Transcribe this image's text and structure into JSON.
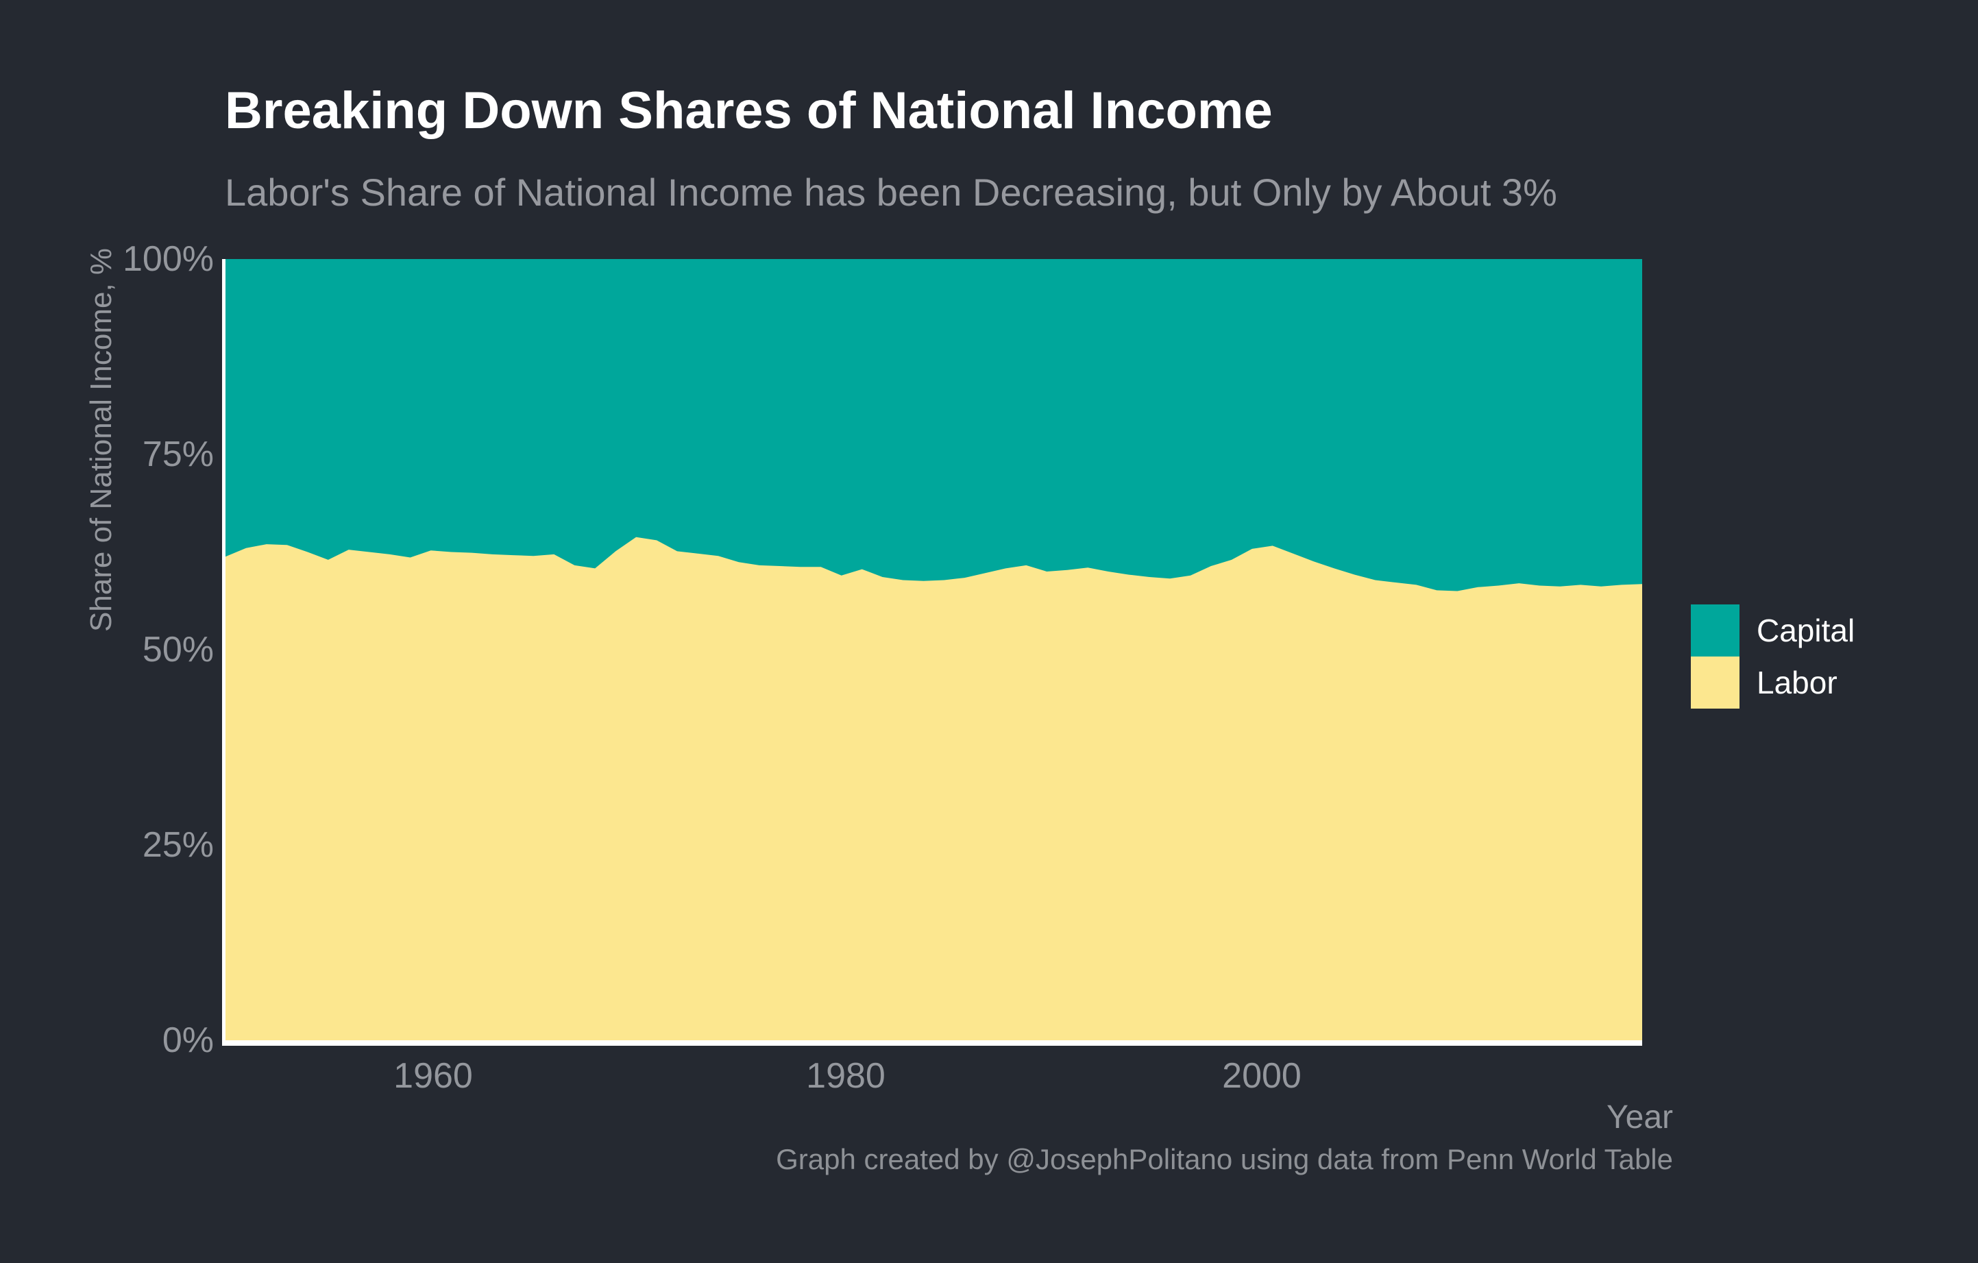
{
  "header": {
    "title": "Breaking Down Shares of National Income",
    "subtitle": "Labor's Share of National Income has been Decreasing, but Only by About 3%"
  },
  "axes": {
    "y_label": "Share of National Income, %",
    "y_ticks": [
      "100%",
      "75%",
      "50%",
      "25%",
      "0%"
    ],
    "x_label": "Year",
    "x_ticks": [
      "1960",
      "1980",
      "2000"
    ]
  },
  "legend": {
    "items": [
      {
        "label": "Capital",
        "color": "#00A79B"
      },
      {
        "label": "Labor",
        "color": "#FCE78F"
      }
    ]
  },
  "caption": "Graph created by @JosephPolitano using data from Penn World Table",
  "colors": {
    "background": "#252931",
    "capital_fill": "#00A79B",
    "labor_fill": "#FCE78F",
    "axis_line": "#ffffff",
    "axis_text": "#94979d",
    "title_text": "#ffffff",
    "subtitle_text": "#97999f",
    "caption_text": "#8e9196"
  },
  "chart_data": {
    "type": "area",
    "stacked": true,
    "title": "Breaking Down Shares of National Income",
    "subtitle": "Labor's Share of National Income has been Decreasing, but Only by About 3%",
    "xlabel": "Year",
    "ylabel": "Share of National Income, %",
    "x_range": [
      1950,
      2019
    ],
    "y_range_pct": [
      0,
      100
    ],
    "x_ticks": [
      1960,
      1980,
      2000
    ],
    "y_ticks_pct": [
      0,
      25,
      50,
      75,
      100
    ],
    "grid": false,
    "legend_position": "right",
    "note": "Shares stack to 100%; Capital = 100 minus Labor",
    "x": [
      1950,
      1951,
      1952,
      1953,
      1954,
      1955,
      1956,
      1957,
      1958,
      1959,
      1960,
      1961,
      1962,
      1963,
      1964,
      1965,
      1966,
      1967,
      1968,
      1969,
      1970,
      1971,
      1972,
      1973,
      1974,
      1975,
      1976,
      1977,
      1978,
      1979,
      1980,
      1981,
      1982,
      1983,
      1984,
      1985,
      1986,
      1987,
      1988,
      1989,
      1990,
      1991,
      1992,
      1993,
      1994,
      1995,
      1996,
      1997,
      1998,
      1999,
      2000,
      2001,
      2002,
      2003,
      2004,
      2005,
      2006,
      2007,
      2008,
      2009,
      2010,
      2011,
      2012,
      2013,
      2014,
      2015,
      2016,
      2017,
      2018,
      2019
    ],
    "series": [
      {
        "name": "Capital",
        "color": "#00A79B",
        "values": [
          38.1,
          37.0,
          36.5,
          36.6,
          37.5,
          38.5,
          37.2,
          37.5,
          37.8,
          38.2,
          37.3,
          37.5,
          37.6,
          37.8,
          37.9,
          38.0,
          37.8,
          39.2,
          39.6,
          37.4,
          35.6,
          36.0,
          37.4,
          37.7,
          38.0,
          38.8,
          39.2,
          39.3,
          39.4,
          39.4,
          40.5,
          39.7,
          40.7,
          41.1,
          41.2,
          41.1,
          40.8,
          40.2,
          39.6,
          39.2,
          40.0,
          39.8,
          39.5,
          40.0,
          40.4,
          40.7,
          40.9,
          40.5,
          39.3,
          38.5,
          37.1,
          36.7,
          37.7,
          38.7,
          39.6,
          40.4,
          41.1,
          41.4,
          41.7,
          42.4,
          42.5,
          42.0,
          41.8,
          41.5,
          41.8,
          41.9,
          41.7,
          41.9,
          41.7,
          41.6
        ]
      },
      {
        "name": "Labor",
        "color": "#FCE78F",
        "values": [
          61.9,
          63.0,
          63.5,
          63.4,
          62.5,
          61.5,
          62.8,
          62.5,
          62.2,
          61.8,
          62.7,
          62.5,
          62.4,
          62.2,
          62.1,
          62.0,
          62.2,
          60.8,
          60.4,
          62.6,
          64.4,
          64.0,
          62.6,
          62.3,
          62.0,
          61.2,
          60.8,
          60.7,
          60.6,
          60.6,
          59.5,
          60.3,
          59.3,
          58.9,
          58.8,
          58.9,
          59.2,
          59.8,
          60.4,
          60.8,
          60.0,
          60.2,
          60.5,
          60.0,
          59.6,
          59.3,
          59.1,
          59.5,
          60.7,
          61.5,
          62.9,
          63.3,
          62.3,
          61.3,
          60.4,
          59.6,
          58.9,
          58.6,
          58.3,
          57.6,
          57.5,
          58.0,
          58.2,
          58.5,
          58.2,
          58.1,
          58.3,
          58.1,
          58.3,
          58.4
        ]
      }
    ]
  }
}
